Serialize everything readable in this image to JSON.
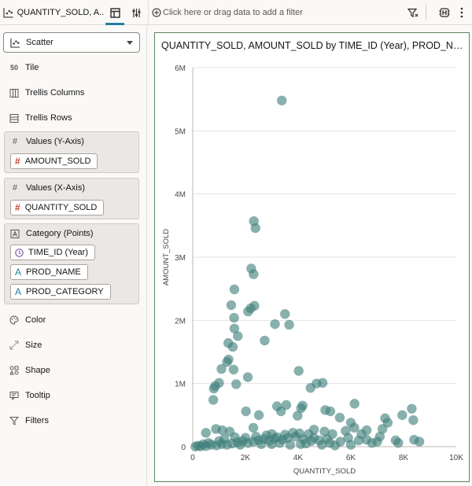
{
  "tab": {
    "title": "QUANTITY_SOLD, A..."
  },
  "filter": {
    "placeholder": "Click here or drag data to add a filter"
  },
  "panel": {
    "viz_type": "Scatter",
    "tile_label": "Tile",
    "trellis_columns": "Trellis Columns",
    "trellis_rows": "Trellis Rows",
    "y_axis": {
      "label": "Values (Y-Axis)",
      "items": [
        "AMOUNT_SOLD"
      ]
    },
    "x_axis": {
      "label": "Values (X-Axis)",
      "items": [
        "QUANTITY_SOLD"
      ]
    },
    "category": {
      "label": "Category (Points)",
      "items": [
        "TIME_ID (Year)",
        "PROD_NAME",
        "PROD_CATEGORY"
      ]
    },
    "color": "Color",
    "size": "Size",
    "shape": "Shape",
    "tooltip": "Tooltip",
    "filters": "Filters"
  },
  "colors": {
    "accent": "#227e9e",
    "point": "#3f7f7a",
    "frame": "#5d8a5d"
  },
  "chart_data": {
    "type": "scatter",
    "title": "QUANTITY_SOLD, AMOUNT_SOLD by TIME_ID (Year), PROD_NAME...",
    "xlabel": "QUANTITY_SOLD",
    "ylabel": "AMOUNT_SOLD",
    "xlim": [
      0,
      10000
    ],
    "ylim": [
      0,
      6000000
    ],
    "xticks": [
      0,
      2000,
      4000,
      6000,
      8000,
      10000
    ],
    "xtick_labels": [
      "0",
      "2K",
      "4K",
      "6K",
      "8K",
      "10K"
    ],
    "yticks": [
      0,
      1000000,
      2000000,
      3000000,
      4000000,
      5000000,
      6000000
    ],
    "ytick_labels": [
      "0",
      "1M",
      "2M",
      "3M",
      "4M",
      "5M",
      "6M"
    ],
    "points": [
      [
        3380,
        5480000
      ],
      [
        2320,
        3570000
      ],
      [
        2380,
        3460000
      ],
      [
        2220,
        2820000
      ],
      [
        2310,
        2730000
      ],
      [
        1580,
        2490000
      ],
      [
        1460,
        2240000
      ],
      [
        2340,
        2230000
      ],
      [
        2200,
        2190000
      ],
      [
        2100,
        2140000
      ],
      [
        3500,
        2100000
      ],
      [
        1570,
        2040000
      ],
      [
        3120,
        1940000
      ],
      [
        3660,
        1930000
      ],
      [
        1580,
        1870000
      ],
      [
        1710,
        1750000
      ],
      [
        2730,
        1680000
      ],
      [
        1350,
        1640000
      ],
      [
        1520,
        1580000
      ],
      [
        1360,
        1380000
      ],
      [
        1300,
        1340000
      ],
      [
        1090,
        1230000
      ],
      [
        1550,
        1220000
      ],
      [
        4020,
        1200000
      ],
      [
        2090,
        1100000
      ],
      [
        1000,
        1010000
      ],
      [
        1650,
        990000
      ],
      [
        4700,
        1000000
      ],
      [
        4930,
        1010000
      ],
      [
        850,
        960000
      ],
      [
        800,
        920000
      ],
      [
        4470,
        930000
      ],
      [
        780,
        740000
      ],
      [
        3550,
        660000
      ],
      [
        3200,
        640000
      ],
      [
        4170,
        650000
      ],
      [
        6140,
        680000
      ],
      [
        4110,
        610000
      ],
      [
        8310,
        600000
      ],
      [
        5220,
        560000
      ],
      [
        5030,
        580000
      ],
      [
        2020,
        560000
      ],
      [
        2510,
        500000
      ],
      [
        3350,
        560000
      ],
      [
        3980,
        490000
      ],
      [
        7950,
        500000
      ],
      [
        8370,
        420000
      ],
      [
        5580,
        460000
      ],
      [
        6000,
        380000
      ],
      [
        6130,
        300000
      ],
      [
        7300,
        450000
      ],
      [
        7400,
        380000
      ],
      [
        7200,
        280000
      ],
      [
        6600,
        260000
      ],
      [
        5800,
        250000
      ],
      [
        1120,
        260000
      ],
      [
        880,
        280000
      ],
      [
        1400,
        240000
      ],
      [
        2300,
        300000
      ],
      [
        500,
        220000
      ],
      [
        3000,
        200000
      ],
      [
        3800,
        220000
      ],
      [
        4400,
        200000
      ],
      [
        5000,
        240000
      ],
      [
        6400,
        200000
      ],
      [
        8400,
        110000
      ],
      [
        8600,
        80000
      ],
      [
        7700,
        100000
      ],
      [
        7000,
        80000
      ],
      [
        6800,
        60000
      ],
      [
        6300,
        100000
      ],
      [
        5600,
        80000
      ],
      [
        5200,
        60000
      ],
      [
        4800,
        100000
      ],
      [
        4600,
        140000
      ],
      [
        4200,
        120000
      ],
      [
        3900,
        160000
      ],
      [
        3600,
        140000
      ],
      [
        3400,
        110000
      ],
      [
        3100,
        130000
      ],
      [
        2900,
        90000
      ],
      [
        2700,
        120000
      ],
      [
        2500,
        100000
      ],
      [
        2300,
        80000
      ],
      [
        2100,
        60000
      ],
      [
        1900,
        90000
      ],
      [
        1700,
        70000
      ],
      [
        1500,
        50000
      ],
      [
        1300,
        30000
      ],
      [
        1100,
        40000
      ],
      [
        900,
        20000
      ],
      [
        700,
        30000
      ],
      [
        500,
        10000
      ],
      [
        300,
        5000
      ],
      [
        100,
        2000
      ],
      [
        1800,
        30000
      ],
      [
        2600,
        40000
      ],
      [
        3300,
        60000
      ],
      [
        4100,
        40000
      ],
      [
        4900,
        30000
      ],
      [
        5400,
        20000
      ],
      [
        6000,
        30000
      ],
      [
        3700,
        30000
      ],
      [
        4300,
        50000
      ],
      [
        2000,
        140000
      ],
      [
        2800,
        180000
      ],
      [
        3500,
        190000
      ],
      [
        4050,
        210000
      ],
      [
        4600,
        270000
      ],
      [
        5300,
        200000
      ],
      [
        1600,
        150000
      ],
      [
        1200,
        120000
      ],
      [
        2400,
        160000
      ],
      [
        3200,
        150000
      ],
      [
        4500,
        90000
      ],
      [
        5100,
        120000
      ],
      [
        5900,
        140000
      ],
      [
        6600,
        110000
      ],
      [
        7100,
        160000
      ],
      [
        7800,
        60000
      ],
      [
        600,
        60000
      ],
      [
        400,
        40000
      ],
      [
        200,
        15000
      ],
      [
        1000,
        90000
      ],
      [
        3000,
        40000
      ]
    ]
  }
}
